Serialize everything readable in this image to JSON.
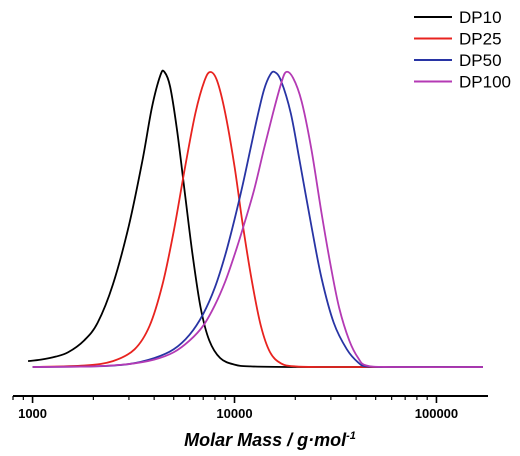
{
  "chart_data": {
    "type": "line",
    "title": "",
    "xlabel": "Molar Mass / g·mol",
    "xlabel_superscript": "-1",
    "ylabel": "",
    "x_scale": "log",
    "xlim": [
      800,
      180000
    ],
    "ylim": [
      0,
      1.05
    ],
    "x_ticks": [
      1000,
      10000,
      100000
    ],
    "x_tick_labels": [
      "1000",
      "10000",
      "100000"
    ],
    "y_axis_visible": false,
    "grid": false,
    "legend_position": "top-right",
    "series": [
      {
        "name": "DP10",
        "color": "#000000",
        "points": [
          [
            950,
            0.02
          ],
          [
            1100,
            0.025
          ],
          [
            1300,
            0.035
          ],
          [
            1500,
            0.05
          ],
          [
            1800,
            0.09
          ],
          [
            2100,
            0.15
          ],
          [
            2500,
            0.28
          ],
          [
            3000,
            0.48
          ],
          [
            3500,
            0.7
          ],
          [
            3900,
            0.88
          ],
          [
            4300,
            0.99
          ],
          [
            4500,
            1.0
          ],
          [
            4800,
            0.95
          ],
          [
            5200,
            0.8
          ],
          [
            5700,
            0.58
          ],
          [
            6200,
            0.38
          ],
          [
            6800,
            0.2
          ],
          [
            7500,
            0.09
          ],
          [
            8500,
            0.03
          ],
          [
            10000,
            0.008
          ],
          [
            12000,
            0.002
          ],
          [
            20000,
            0.0
          ],
          [
            50000,
            0.0
          ],
          [
            170000,
            0.0
          ]
        ]
      },
      {
        "name": "DP25",
        "color": "#e8231f",
        "points": [
          [
            1000,
            0.0
          ],
          [
            1800,
            0.005
          ],
          [
            2500,
            0.02
          ],
          [
            3200,
            0.06
          ],
          [
            3800,
            0.14
          ],
          [
            4400,
            0.28
          ],
          [
            5000,
            0.46
          ],
          [
            5700,
            0.68
          ],
          [
            6400,
            0.86
          ],
          [
            7100,
            0.97
          ],
          [
            7600,
            1.0
          ],
          [
            8200,
            0.97
          ],
          [
            9000,
            0.86
          ],
          [
            10000,
            0.68
          ],
          [
            11000,
            0.48
          ],
          [
            12200,
            0.29
          ],
          [
            13500,
            0.14
          ],
          [
            15000,
            0.05
          ],
          [
            17000,
            0.012
          ],
          [
            20000,
            0.002
          ],
          [
            30000,
            0.0
          ],
          [
            170000,
            0.0
          ]
        ]
      },
      {
        "name": "DP50",
        "color": "#2834a4",
        "points": [
          [
            1000,
            0.0
          ],
          [
            2000,
            0.002
          ],
          [
            3000,
            0.01
          ],
          [
            4000,
            0.03
          ],
          [
            5000,
            0.06
          ],
          [
            6000,
            0.11
          ],
          [
            7000,
            0.18
          ],
          [
            8000,
            0.27
          ],
          [
            9000,
            0.38
          ],
          [
            10000,
            0.5
          ],
          [
            11000,
            0.62
          ],
          [
            12000,
            0.74
          ],
          [
            13000,
            0.85
          ],
          [
            14000,
            0.94
          ],
          [
            15000,
            0.99
          ],
          [
            15800,
            1.0
          ],
          [
            17000,
            0.97
          ],
          [
            19000,
            0.86
          ],
          [
            21000,
            0.7
          ],
          [
            24000,
            0.48
          ],
          [
            27000,
            0.3
          ],
          [
            31000,
            0.15
          ],
          [
            36000,
            0.06
          ],
          [
            41000,
            0.015
          ],
          [
            45000,
            0.002
          ],
          [
            60000,
            0.0
          ],
          [
            170000,
            0.0
          ]
        ]
      },
      {
        "name": "DP100",
        "color": "#b43ab4",
        "points": [
          [
            1000,
            0.0
          ],
          [
            2000,
            0.002
          ],
          [
            3000,
            0.01
          ],
          [
            4000,
            0.025
          ],
          [
            5000,
            0.05
          ],
          [
            6000,
            0.09
          ],
          [
            7000,
            0.14
          ],
          [
            8000,
            0.21
          ],
          [
            9000,
            0.29
          ],
          [
            10000,
            0.38
          ],
          [
            11000,
            0.47
          ],
          [
            12500,
            0.6
          ],
          [
            14000,
            0.74
          ],
          [
            15500,
            0.86
          ],
          [
            17000,
            0.96
          ],
          [
            18000,
            1.0
          ],
          [
            19500,
            0.98
          ],
          [
            21500,
            0.9
          ],
          [
            24000,
            0.74
          ],
          [
            27000,
            0.52
          ],
          [
            30000,
            0.34
          ],
          [
            33000,
            0.2
          ],
          [
            37000,
            0.09
          ],
          [
            41000,
            0.03
          ],
          [
            45000,
            0.005
          ],
          [
            60000,
            0.0
          ],
          [
            170000,
            0.0
          ]
        ]
      }
    ]
  }
}
